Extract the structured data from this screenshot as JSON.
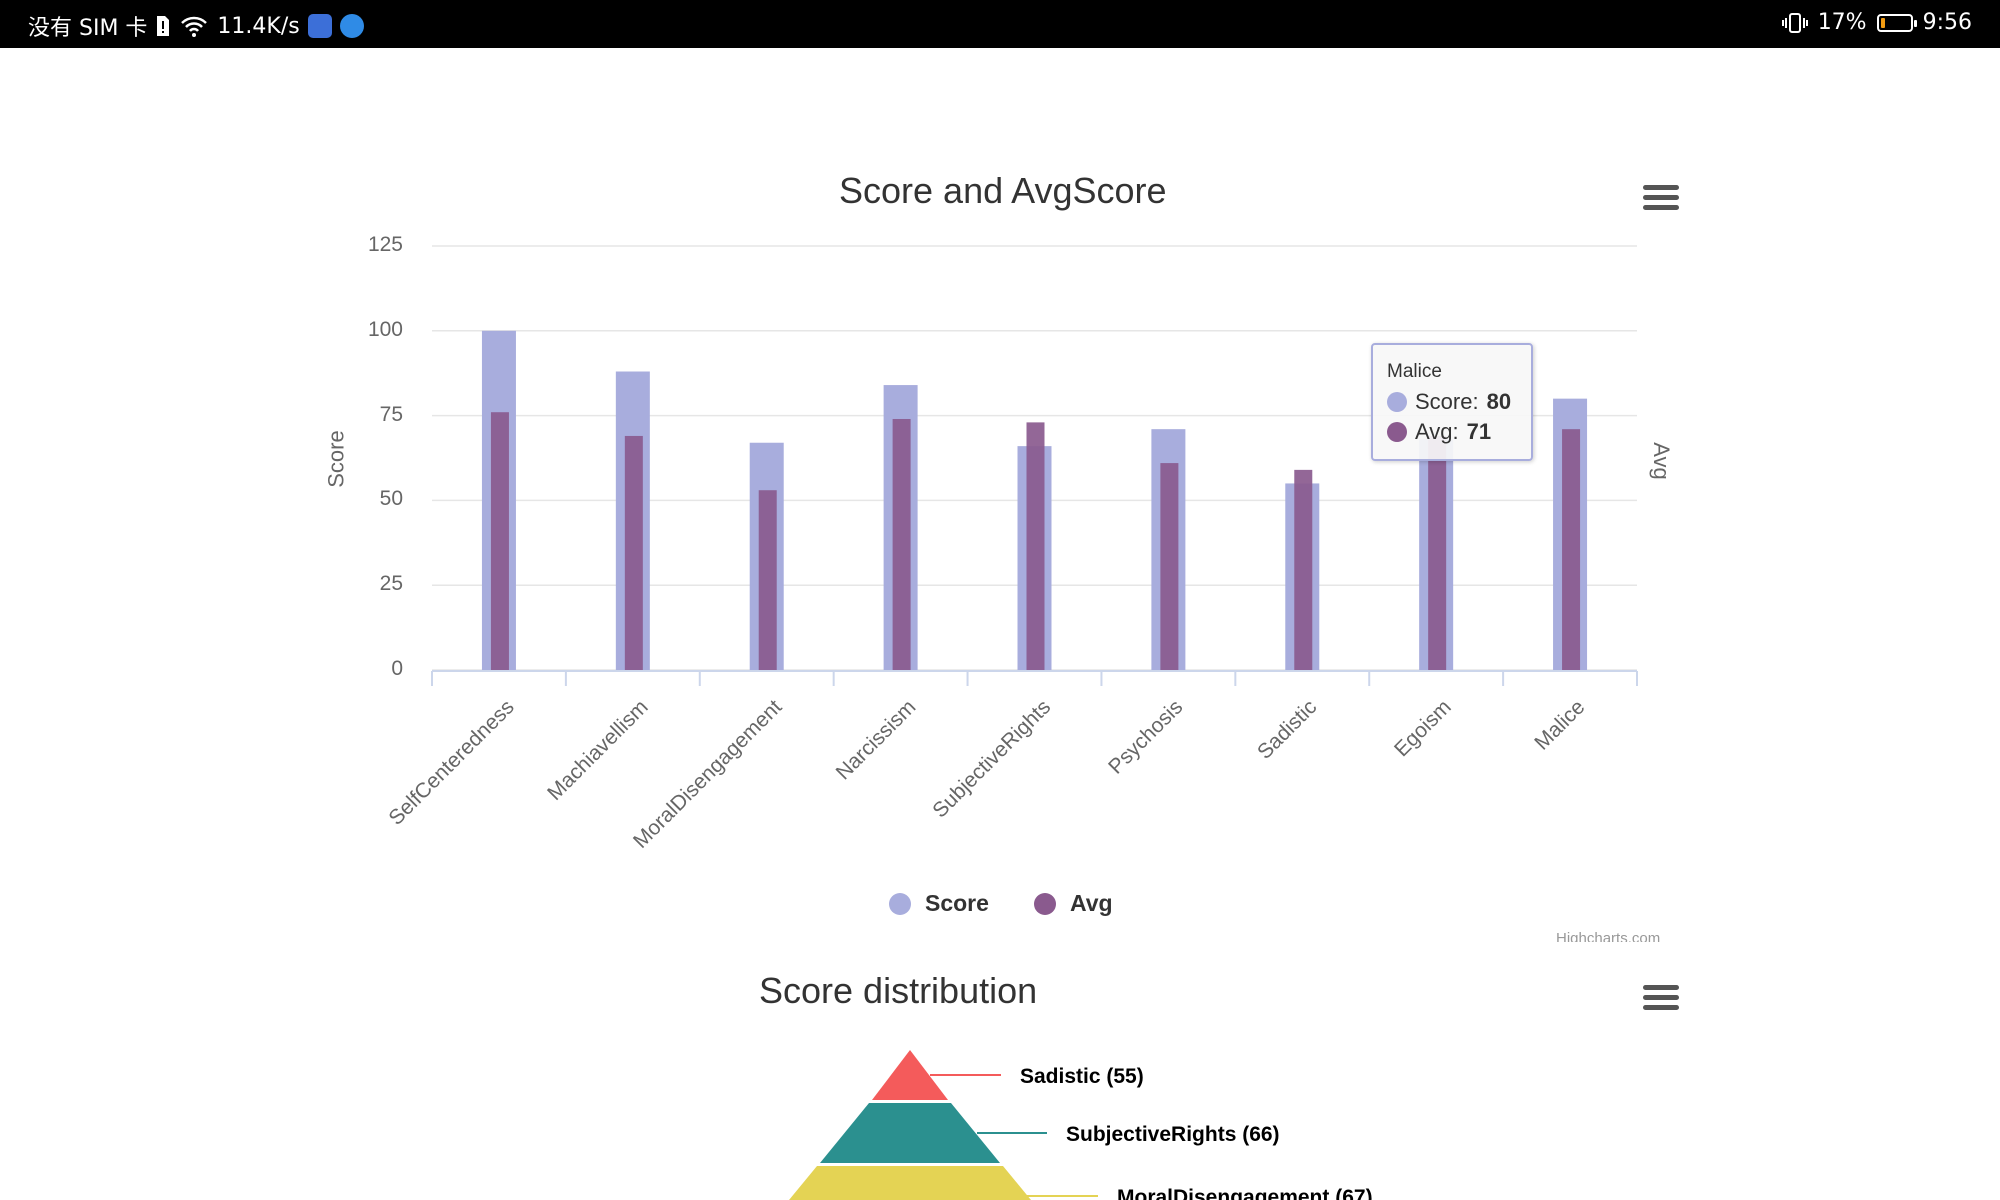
{
  "status_bar": {
    "carrier": "没有 SIM 卡",
    "speed": "11.4K/s",
    "battery_percent": "17%",
    "time": "9:56",
    "battery_level": 0.17,
    "battery_color": "#f39c12"
  },
  "chart1": {
    "title": "Score and AvgScore",
    "menu_icon": "hamburger-menu-icon",
    "credits": "Highcharts.com",
    "tooltip": {
      "header": "Malice",
      "rows": [
        {
          "name": "Score",
          "sep": ": ",
          "value": "80"
        },
        {
          "name": "Avg",
          "sep": ": ",
          "value": "71"
        }
      ]
    },
    "legend": [
      {
        "name": "Score",
        "color": "#a8addd"
      },
      {
        "name": "Avg",
        "color": "#8a5a8e"
      }
    ]
  },
  "chart2": {
    "title": "Score distribution",
    "menu_icon": "hamburger-menu-icon",
    "labels": [
      "Sadistic (55)",
      "SubjectiveRights (66)",
      "MoralDisengagement (67)"
    ]
  },
  "chart_data": [
    {
      "type": "bar",
      "title": "Score and AvgScore",
      "ylabel": "Score",
      "y2label": "Avg",
      "xlabel": "",
      "ylim": [
        0,
        125
      ],
      "yticks": [
        0,
        25,
        50,
        75,
        100,
        125
      ],
      "grid": true,
      "legend_position": "bottom-center",
      "categories": [
        "SelfCenteredness",
        "Machiavellism",
        "MoralDisengagement",
        "Narcissism",
        "SubjectiveRights",
        "Psychosis",
        "Sadistic",
        "Egoism",
        "Malice"
      ],
      "series": [
        {
          "name": "Score",
          "color": "#a8addd",
          "values": [
            100,
            88,
            67,
            84,
            66,
            71,
            55,
            68,
            80
          ]
        },
        {
          "name": "Avg",
          "color": "#8a5a8e",
          "values": [
            76,
            69,
            53,
            74,
            73,
            61,
            59,
            69,
            71
          ]
        }
      ]
    },
    {
      "type": "pyramid",
      "title": "Score distribution",
      "labels": [
        "Sadistic (55)",
        "SubjectiveRights (66)",
        "MoralDisengagement (67)"
      ],
      "values": [
        55,
        66,
        67
      ],
      "colors": [
        "#f45b5b",
        "#2b908f",
        "#e4d354"
      ]
    }
  ]
}
